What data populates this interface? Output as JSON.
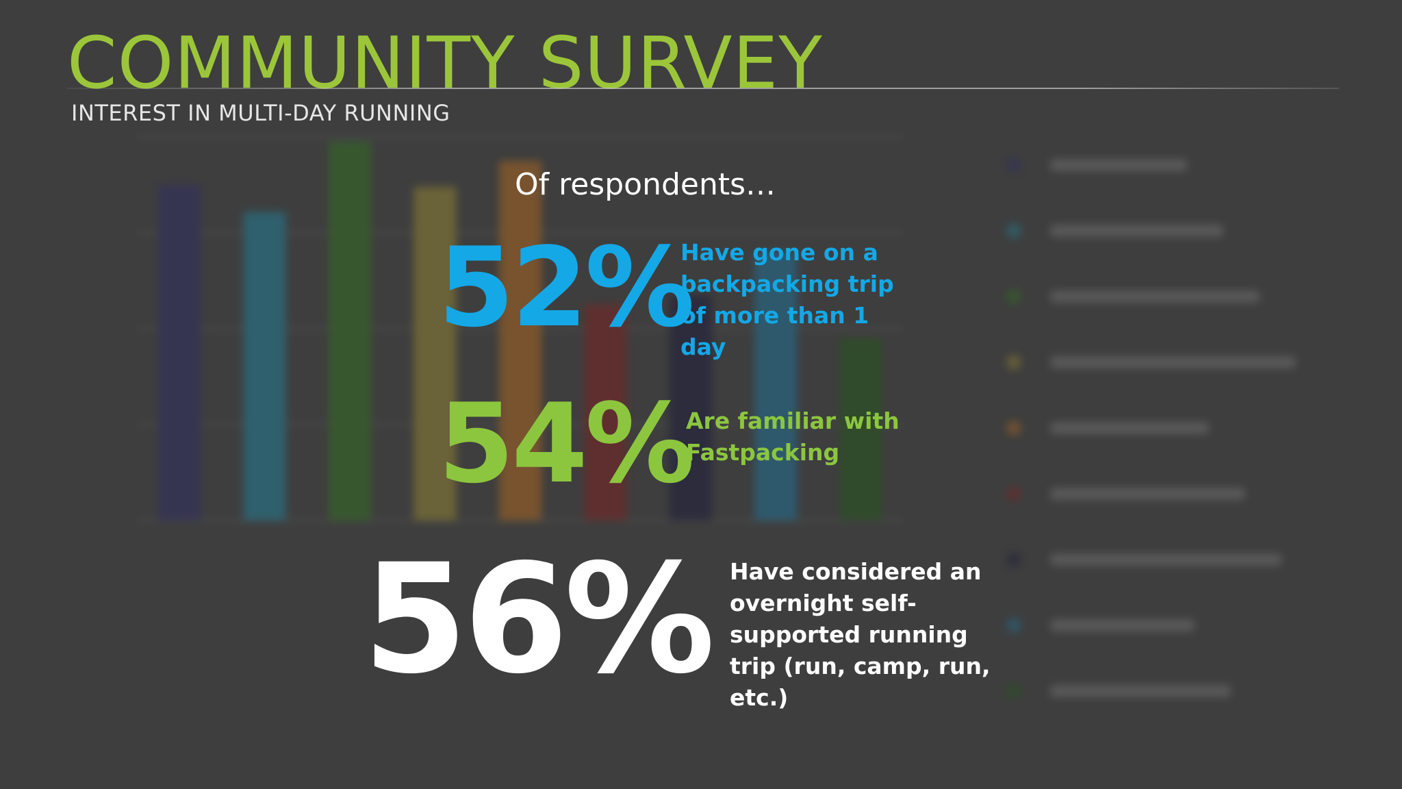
{
  "header": {
    "title": "COMMUNITY SURVEY",
    "subtitle": "INTEREST IN MULTI-DAY RUNNING"
  },
  "lead": "Of respondents…",
  "stats": [
    {
      "value": "52%",
      "text": "Have gone on a backpacking trip of more than 1 day",
      "color": "#14a8e6"
    },
    {
      "value": "54%",
      "text": "Are familiar with Fastpacking",
      "color": "#8cc63f"
    },
    {
      "value": "56%",
      "text": "Have considered an overnight self-supported running trip (run, camp, run, etc.)",
      "color": "#ffffff"
    }
  ],
  "colors": {
    "background": "#3e3e3e",
    "title": "#9cc63a",
    "accent_blue": "#14a8e6",
    "accent_green": "#8cc63f"
  },
  "chart_data": {
    "type": "bar",
    "ylim": [
      0,
      400
    ],
    "values": [
      350,
      322,
      395,
      348,
      375,
      225,
      235,
      280,
      190
    ],
    "series_colors": [
      "#2a2a6e",
      "#1c8fae",
      "#2f7d1a",
      "#a89530",
      "#c8721a",
      "#8e1b1b",
      "#14143c",
      "#1a7fae",
      "#1e5e12"
    ]
  }
}
